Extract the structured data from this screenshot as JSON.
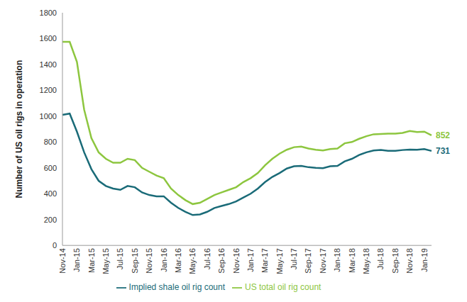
{
  "chart_data": {
    "type": "line",
    "y_label": "Number of US oil rigs in operation",
    "categories": [
      "Nov-14",
      null,
      "Jan-15",
      null,
      "Mar-15",
      null,
      "May-15",
      null,
      "Jul-15",
      null,
      "Sep-15",
      null,
      "Nov-15",
      null,
      "Jan-16",
      null,
      "Mar-16",
      null,
      "May-16",
      null,
      "Jul-16",
      null,
      "Sep-16",
      null,
      "Nov-16",
      null,
      "Jan-17",
      null,
      "Mar-17",
      null,
      "May-17",
      null,
      "Jul-17",
      null,
      "Sep-17",
      null,
      "Nov-17",
      null,
      "Jan-18",
      null,
      "Mar-18",
      null,
      "May-18",
      null,
      "Jul-18",
      null,
      "Sep-18",
      null,
      "Nov-18",
      null,
      "Jan-19",
      null
    ],
    "series": [
      {
        "name": "Implied shale oil rig count",
        "color": "#1a6b78",
        "values": [
          1010,
          1020,
          880,
          720,
          590,
          500,
          460,
          440,
          430,
          460,
          450,
          410,
          390,
          380,
          380,
          330,
          290,
          260,
          235,
          240,
          260,
          290,
          305,
          320,
          340,
          370,
          400,
          440,
          490,
          530,
          560,
          595,
          612,
          615,
          605,
          600,
          598,
          612,
          615,
          650,
          670,
          700,
          720,
          735,
          738,
          732,
          732,
          738,
          742,
          740,
          745,
          731
        ]
      },
      {
        "name": "US total oil rig count",
        "color": "#8dc63f",
        "values": [
          1575,
          1575,
          1420,
          1050,
          830,
          720,
          670,
          640,
          640,
          670,
          660,
          600,
          570,
          540,
          520,
          440,
          390,
          350,
          320,
          330,
          360,
          390,
          410,
          430,
          450,
          490,
          520,
          560,
          620,
          670,
          710,
          740,
          760,
          765,
          750,
          740,
          735,
          745,
          750,
          790,
          800,
          825,
          845,
          860,
          862,
          865,
          865,
          870,
          885,
          877,
          880,
          852
        ]
      }
    ],
    "ylim": [
      0,
      1800
    ],
    "yticks": [
      0,
      200,
      400,
      600,
      800,
      1000,
      1200,
      1400,
      1600,
      1800
    ],
    "grid": false,
    "legend": "bottom"
  }
}
